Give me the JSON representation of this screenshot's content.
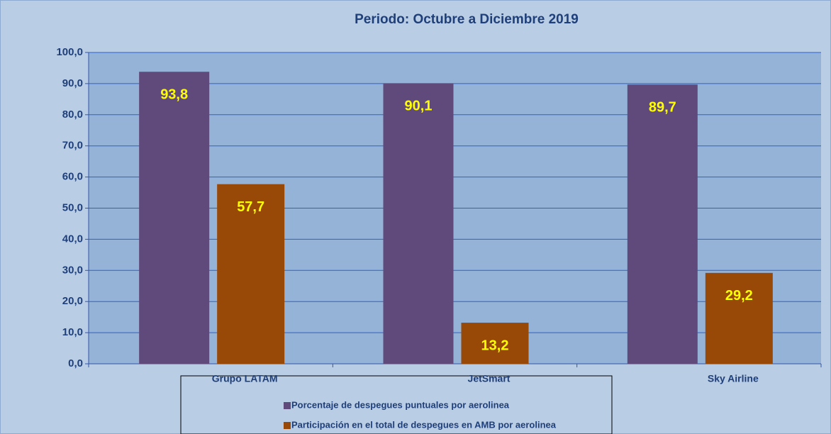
{
  "chart_data": {
    "type": "bar",
    "title": "Periodo: Octubre  a  Diciembre   2019",
    "categories": [
      "Grupo LATAM",
      "JetSmart",
      "Sky Airline"
    ],
    "series": [
      {
        "name": "Porcentaje de despegues puntuales por aerolinea",
        "color": "#604a7b",
        "values": [
          93.8,
          90.1,
          89.7
        ],
        "value_labels": [
          "93,8",
          "90,1",
          "89,7"
        ]
      },
      {
        "name": "Participación en el total de despegues en AMB por aerolinea",
        "color": "#984807",
        "values": [
          57.7,
          13.2,
          29.2
        ],
        "value_labels": [
          "57,7",
          "13,2",
          "29,2"
        ]
      }
    ],
    "ylim": [
      0,
      100
    ],
    "yticks": [
      {
        "value": 0,
        "label": "0,0"
      },
      {
        "value": 10,
        "label": "10,0"
      },
      {
        "value": 20,
        "label": "20,0"
      },
      {
        "value": 30,
        "label": "30,0"
      },
      {
        "value": 40,
        "label": "40,0"
      },
      {
        "value": 50,
        "label": "50,0"
      },
      {
        "value": 60,
        "label": "60,0"
      },
      {
        "value": 70,
        "label": "70,0"
      },
      {
        "value": 80,
        "label": "80,0"
      },
      {
        "value": 90,
        "label": "90,0"
      },
      {
        "value": 100,
        "label": "100,0"
      }
    ],
    "grid": true,
    "legend": "bottom"
  }
}
